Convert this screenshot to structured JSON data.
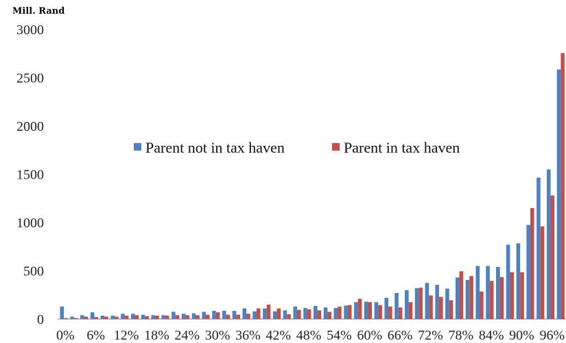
{
  "chart_data": {
    "type": "bar",
    "unit_label": "Mill. Rand",
    "ylim": [
      0,
      3000
    ],
    "yticks": [
      0,
      500,
      1000,
      1500,
      2000,
      2500,
      3000
    ],
    "x_tick_labels": [
      "0%",
      "6%",
      "12%",
      "18%",
      "24%",
      "30%",
      "36%",
      "42%",
      "48%",
      "54%",
      "60%",
      "66%",
      "72%",
      "78%",
      "84%",
      "90%",
      "96%"
    ],
    "categories": [
      "0%",
      "2%",
      "4%",
      "6%",
      "8%",
      "10%",
      "12%",
      "14%",
      "16%",
      "18%",
      "20%",
      "22%",
      "24%",
      "26%",
      "28%",
      "30%",
      "32%",
      "34%",
      "36%",
      "38%",
      "40%",
      "42%",
      "44%",
      "46%",
      "48%",
      "50%",
      "52%",
      "54%",
      "56%",
      "58%",
      "60%",
      "62%",
      "64%",
      "66%",
      "68%",
      "70%",
      "72%",
      "74%",
      "76%",
      "78%",
      "80%",
      "82%",
      "84%",
      "86%",
      "88%",
      "90%",
      "92%",
      "94%",
      "96%",
      "98%"
    ],
    "series": [
      {
        "name": "Parent not in tax haven",
        "color": "#4F81BD",
        "values": [
          130,
          25,
          40,
          70,
          35,
          35,
          55,
          55,
          45,
          40,
          40,
          75,
          55,
          60,
          75,
          85,
          85,
          85,
          110,
          80,
          110,
          80,
          90,
          130,
          115,
          135,
          120,
          115,
          140,
          175,
          180,
          175,
          220,
          270,
          300,
          320,
          375,
          355,
          315,
          430,
          405,
          550,
          550,
          540,
          770,
          785,
          975,
          1465,
          1550,
          2585
        ]
      },
      {
        "name": "Parent in tax haven",
        "color": "#C0504D",
        "values": [
          10,
          10,
          25,
          20,
          25,
          25,
          35,
          40,
          30,
          35,
          35,
          40,
          40,
          40,
          45,
          70,
          45,
          45,
          55,
          110,
          150,
          110,
          50,
          95,
          100,
          90,
          75,
          130,
          145,
          210,
          175,
          145,
          130,
          120,
          175,
          325,
          245,
          230,
          195,
          495,
          445,
          285,
          395,
          435,
          485,
          485,
          1150,
          960,
          1280,
          2755
        ]
      }
    ],
    "legend": {
      "position": "center"
    },
    "grid": false
  }
}
